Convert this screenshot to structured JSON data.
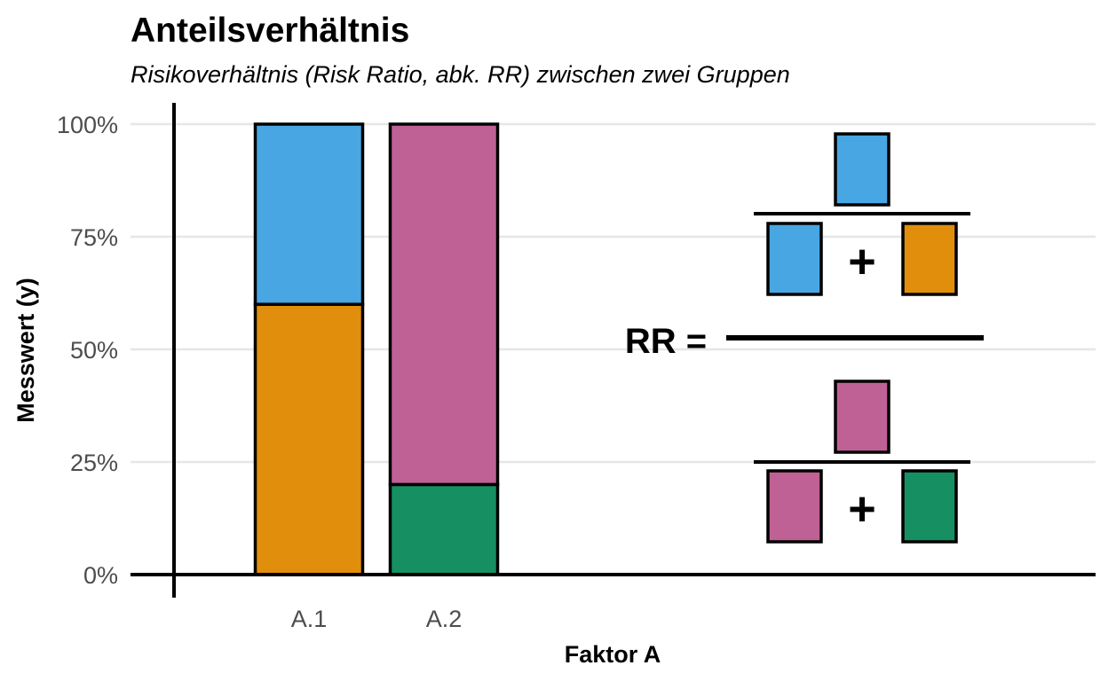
{
  "chart_data": {
    "type": "bar",
    "stacked": true,
    "title": "Anteilsverhältnis",
    "subtitle": "Risikoverhältnis (Risk Ratio, abk. RR) zwischen zwei Gruppen",
    "xlabel": "Faktor A",
    "ylabel": "Messwert (y)",
    "categories": [
      "A.1",
      "A.2"
    ],
    "ylim": [
      0,
      1
    ],
    "yticks": [
      0,
      0.25,
      0.5,
      0.75,
      1
    ],
    "ytick_labels": [
      "0%",
      "25%",
      "50%",
      "75%",
      "100%"
    ],
    "grid": "horizontal",
    "legend": "none",
    "series": [
      {
        "category": "A.1",
        "segments": [
          {
            "from": 0,
            "to": 0.6,
            "color": "#E08E0B"
          },
          {
            "from": 0.6,
            "to": 1.0,
            "color": "#48A6E3"
          }
        ]
      },
      {
        "category": "A.2",
        "segments": [
          {
            "from": 0,
            "to": 0.2,
            "color": "#168F62"
          },
          {
            "from": 0.2,
            "to": 1.0,
            "color": "#BF6195"
          }
        ]
      }
    ],
    "formula": {
      "label": "RR =",
      "plus": "+",
      "numerator": {
        "top": "#48A6E3",
        "bottom_left": "#48A6E3",
        "bottom_right": "#E08E0B"
      },
      "denominator": {
        "top": "#BF6195",
        "bottom_left": "#BF6195",
        "bottom_right": "#168F62"
      }
    }
  },
  "colors": {
    "blue": "#48A6E3",
    "orange": "#E08E0B",
    "pink": "#BF6195",
    "green": "#168F62",
    "grid": "#e6e6e6",
    "tick_text": "#4d4d4d"
  }
}
